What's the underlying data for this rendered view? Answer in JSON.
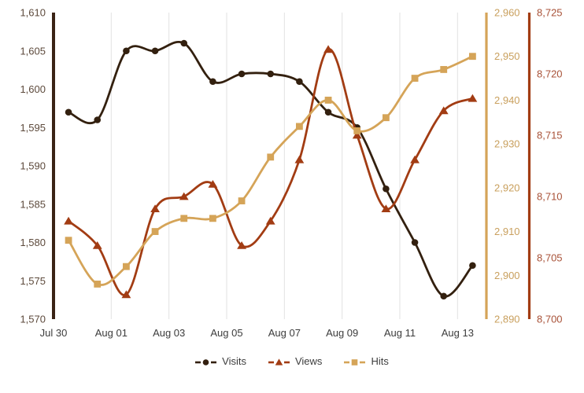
{
  "chart_data": {
    "type": "line",
    "title": "",
    "categories": [
      "Jul 30",
      "Jul 31",
      "Aug 01",
      "Aug 02",
      "Aug 03",
      "Aug 04",
      "Aug 05",
      "Aug 06",
      "Aug 07",
      "Aug 08",
      "Aug 09",
      "Aug 10",
      "Aug 11",
      "Aug 12",
      "Aug 13"
    ],
    "x_tick_labels": [
      "Jul 30",
      "Aug 01",
      "Aug 03",
      "Aug 05",
      "Aug 07",
      "Aug 09",
      "Aug 11",
      "Aug 13"
    ],
    "series": [
      {
        "name": "Visits",
        "marker": "circle",
        "color": "#33200F",
        "axis": "visits",
        "values": [
          1597,
          1596,
          1605,
          1605,
          1606,
          1601,
          1602,
          1602,
          1601,
          1597,
          1595,
          1587,
          1580,
          1573,
          1577
        ]
      },
      {
        "name": "Views",
        "marker": "triangle",
        "color": "#A23C13",
        "axis": "views",
        "values": [
          8708,
          8706,
          8702,
          8709,
          8710,
          8711,
          8706,
          8708,
          8713,
          8722,
          8715,
          8709,
          8713,
          8717,
          8718
        ]
      },
      {
        "name": "Hits",
        "marker": "square",
        "color": "#D5A458",
        "axis": "hits",
        "values": [
          2908,
          2898,
          2902,
          2910,
          2913,
          2913,
          2917,
          2927,
          2934,
          2940,
          2933,
          2936,
          2945,
          2947,
          2950
        ]
      }
    ],
    "axes": {
      "visits": {
        "position": "left",
        "min": 1570,
        "max": 1610,
        "step": 5,
        "tick_labels": [
          "1,570",
          "1,575",
          "1,580",
          "1,585",
          "1,590",
          "1,595",
          "1,600",
          "1,605",
          "1,610"
        ],
        "bar_color": "#3A2315",
        "label_color": "#5D4A3C"
      },
      "hits": {
        "position": "right_inner",
        "min": 2890,
        "max": 2960,
        "step": 10,
        "tick_labels": [
          "2,890",
          "2,900",
          "2,910",
          "2,920",
          "2,930",
          "2,940",
          "2,950",
          "2,960"
        ],
        "bar_color": "#D5A458",
        "label_color": "#C9A05E"
      },
      "views": {
        "position": "right_outer",
        "min": 8700,
        "max": 8725,
        "step": 5,
        "tick_labels": [
          "8,700",
          "8,705",
          "8,710",
          "8,715",
          "8,720",
          "8,725"
        ],
        "bar_color": "#A23C13",
        "label_color": "#A85238"
      }
    },
    "grid": {
      "show": true,
      "color": "#E2E2E2"
    },
    "x_label_color": "#3C3C3C",
    "legend": {
      "position": "bottom"
    },
    "background": "#FFFFFF"
  }
}
